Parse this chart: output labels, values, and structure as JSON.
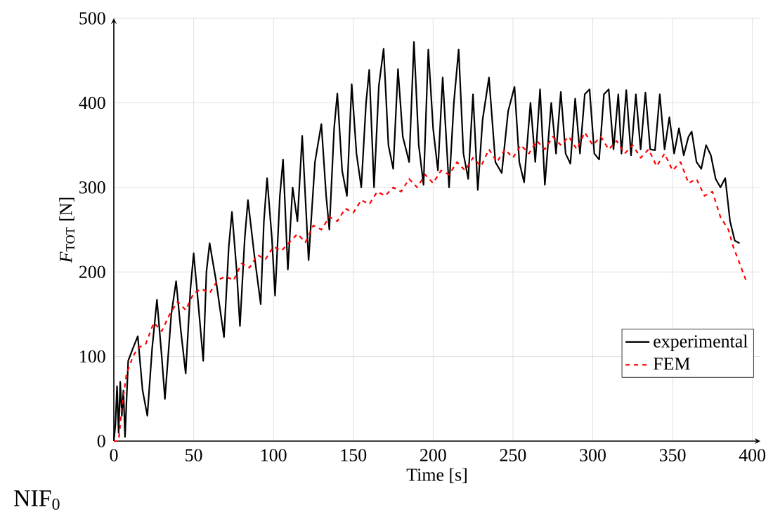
{
  "chart_data": {
    "type": "line",
    "xlabel": "Time [s]",
    "ylabel": "*F*$_{TOT}$ [N]",
    "annotations": [
      "NIF$_{0}$"
    ],
    "xlim": [
      0,
      405
    ],
    "ylim": [
      0,
      500
    ],
    "xticks": [
      0,
      50,
      100,
      150,
      200,
      250,
      300,
      350,
      400
    ],
    "yticks": [
      0,
      100,
      200,
      300,
      400,
      500
    ],
    "grid": true,
    "legend": "bottom right",
    "marker": "none",
    "series": [
      {
        "name": "experimental",
        "color": "#000000",
        "line_style": "solid",
        "x": [
          0,
          1,
          2,
          3,
          4,
          5,
          6,
          7,
          9,
          12,
          15,
          18,
          21,
          24,
          27,
          30,
          32,
          36,
          39,
          42,
          45,
          48,
          50,
          53,
          56,
          58,
          60,
          64,
          69,
          72,
          74,
          77,
          79,
          82,
          84,
          88,
          92,
          94,
          96,
          99,
          101,
          104,
          106,
          109,
          112,
          115,
          118,
          122,
          126,
          130,
          133,
          135,
          138,
          140,
          143,
          146,
          149,
          152,
          155,
          158,
          160,
          163,
          166,
          169,
          172,
          175,
          178,
          181,
          185,
          188,
          191,
          194,
          197,
          200,
          203,
          206,
          210,
          213,
          216,
          219,
          222,
          225,
          228,
          231,
          235,
          239,
          243,
          247,
          251,
          254,
          257,
          261,
          264,
          267,
          270,
          274,
          277,
          280,
          283,
          286,
          289,
          292,
          295,
          298,
          301,
          304,
          307,
          310,
          313,
          316,
          318,
          321,
          324,
          327,
          330,
          333,
          336,
          339,
          342,
          345,
          348,
          351,
          354,
          357,
          360,
          362,
          365,
          368,
          371,
          374,
          377,
          380,
          383,
          386,
          389,
          392
        ],
        "values": [
          0,
          20,
          65,
          10,
          70,
          30,
          60,
          5,
          95,
          110,
          124,
          60,
          30,
          110,
          167,
          100,
          50,
          150,
          189,
          130,
          80,
          180,
          222,
          160,
          95,
          200,
          234,
          190,
          123,
          230,
          271,
          200,
          136,
          240,
          285,
          220,
          162,
          260,
          311,
          240,
          172,
          290,
          333,
          203,
          300,
          260,
          361,
          214,
          330,
          375,
          290,
          250,
          370,
          411,
          320,
          290,
          422,
          340,
          300,
          400,
          439,
          300,
          420,
          464,
          350,
          322,
          440,
          360,
          330,
          472,
          350,
          303,
          463,
          370,
          320,
          430,
          300,
          400,
          463,
          340,
          310,
          410,
          297,
          380,
          430,
          330,
          317,
          390,
          419,
          330,
          306,
          400,
          330,
          416,
          303,
          400,
          340,
          413,
          340,
          328,
          405,
          340,
          410,
          416,
          340,
          333,
          410,
          416,
          345,
          410,
          340,
          415,
          338,
          410,
          345,
          412,
          345,
          344,
          410,
          345,
          383,
          340,
          370,
          338,
          360,
          366,
          330,
          322,
          350,
          338,
          310,
          300,
          311,
          260,
          237,
          234
        ]
      },
      {
        "name": "FEM",
        "color": "#ff0000",
        "line_style": "dashed",
        "x": [
          0,
          3,
          5,
          8,
          12,
          15,
          20,
          25,
          30,
          35,
          40,
          45,
          50,
          55,
          60,
          65,
          70,
          75,
          80,
          85,
          90,
          95,
          100,
          105,
          110,
          115,
          120,
          125,
          130,
          135,
          140,
          145,
          150,
          155,
          160,
          165,
          170,
          175,
          180,
          185,
          190,
          195,
          200,
          205,
          210,
          215,
          220,
          225,
          230,
          235,
          240,
          245,
          250,
          255,
          260,
          265,
          270,
          275,
          280,
          285,
          290,
          295,
          300,
          305,
          310,
          315,
          320,
          325,
          330,
          335,
          340,
          345,
          350,
          355,
          360,
          365,
          370,
          375,
          380,
          385,
          388,
          391,
          396
        ],
        "values": [
          0,
          0,
          40,
          80,
          100,
          110,
          115,
          140,
          130,
          150,
          165,
          155,
          175,
          180,
          175,
          190,
          195,
          190,
          210,
          205,
          220,
          215,
          230,
          225,
          235,
          245,
          235,
          255,
          250,
          265,
          260,
          275,
          270,
          285,
          280,
          295,
          290,
          300,
          295,
          310,
          300,
          315,
          305,
          320,
          315,
          330,
          320,
          335,
          325,
          345,
          330,
          345,
          335,
          350,
          340,
          355,
          345,
          360,
          350,
          360,
          345,
          365,
          350,
          360,
          345,
          355,
          340,
          350,
          335,
          345,
          325,
          340,
          320,
          330,
          305,
          310,
          290,
          295,
          265,
          250,
          230,
          215,
          190
        ]
      }
    ]
  }
}
